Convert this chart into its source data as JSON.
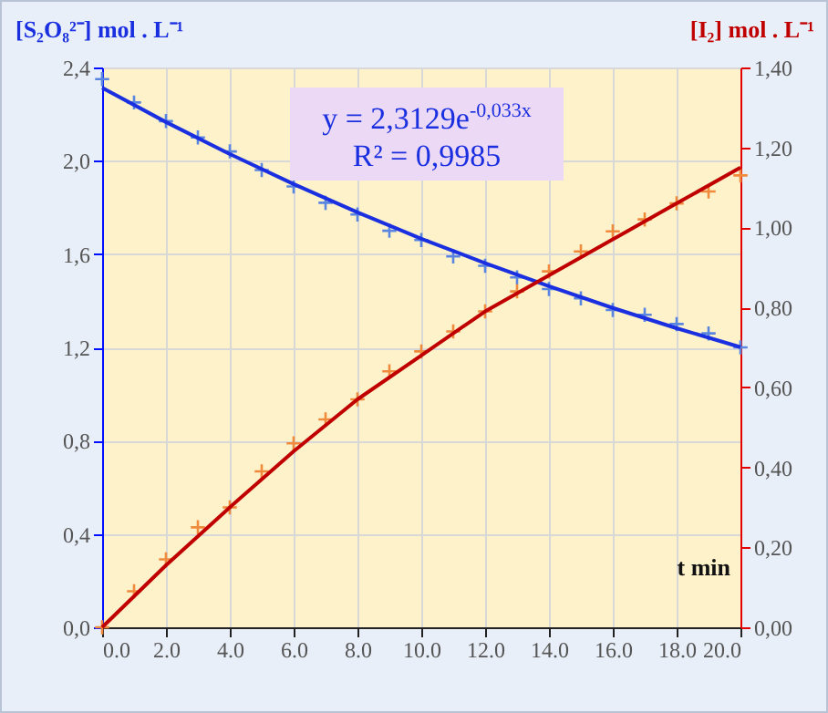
{
  "chart_data": {
    "type": "scatter",
    "xlabel": "t min",
    "ylabel": "[S₂O₈²⁻] mol . L⁻¹",
    "y2label": "[I₂] mol . L⁻¹",
    "x": [
      0,
      1,
      2,
      3,
      4,
      5,
      6,
      7,
      8,
      9,
      10,
      11,
      12,
      13,
      14,
      15,
      16,
      17,
      18,
      19,
      20
    ],
    "xlim": [
      0,
      20
    ],
    "xticks": [
      {
        "value": 0,
        "label": "0.0"
      },
      {
        "value": 2,
        "label": "2.0"
      },
      {
        "value": 4,
        "label": "4.0"
      },
      {
        "value": 6,
        "label": "6.0"
      },
      {
        "value": 8,
        "label": "8.0"
      },
      {
        "value": 10,
        "label": "10.0"
      },
      {
        "value": 12,
        "label": "12.0"
      },
      {
        "value": 14,
        "label": "14.0"
      },
      {
        "value": 16,
        "label": "16.0"
      },
      {
        "value": 18,
        "label": "18.0"
      },
      {
        "value": 20,
        "label": "20.0"
      }
    ],
    "ylim": [
      0,
      2.4
    ],
    "yticks": [
      {
        "value": 0,
        "label": "0,0"
      },
      {
        "value": 0.4,
        "label": "0,4"
      },
      {
        "value": 0.8,
        "label": "0,8"
      },
      {
        "value": 1.2,
        "label": "1,2"
      },
      {
        "value": 1.6,
        "label": "1,6"
      },
      {
        "value": 2,
        "label": "2,0"
      },
      {
        "value": 2.4,
        "label": "2,4"
      }
    ],
    "y2lim": [
      0,
      1.4
    ],
    "y2ticks": [
      {
        "value": 0,
        "label": "0,00"
      },
      {
        "value": 0.2,
        "label": "0,20"
      },
      {
        "value": 0.4,
        "label": "0,40"
      },
      {
        "value": 0.6,
        "label": "0,60"
      },
      {
        "value": 0.8,
        "label": "0,80"
      },
      {
        "value": 1,
        "label": "1,00"
      },
      {
        "value": 1.2,
        "label": "1,20"
      },
      {
        "value": 1.4,
        "label": "1,40"
      }
    ],
    "grid": true,
    "annotations": [
      "y = 2,3129e$^{-0,033x}$",
      "R² = 0,9985"
    ],
    "series": [
      {
        "type": "scatter",
        "marker": "cross",
        "color": "#5b86e0",
        "values": [
          2.35,
          2.25,
          2.17,
          2.1,
          2.04,
          1.96,
          1.89,
          1.82,
          1.77,
          1.7,
          1.66,
          1.59,
          1.55,
          1.5,
          1.45,
          1.41,
          1.36,
          1.34,
          1.3,
          1.26,
          1.2
        ]
      },
      {
        "type": "line",
        "color": "#1a2fe0",
        "x": [
          0,
          2,
          4,
          6,
          8,
          10,
          12,
          14,
          16,
          18,
          20
        ],
        "values": [
          2.313,
          2.166,
          2.029,
          1.9,
          1.779,
          1.666,
          1.561,
          1.462,
          1.369,
          1.282,
          1.201
        ]
      },
      {
        "type": "scatter",
        "marker": "cross",
        "axis": "y2",
        "color": "#f08a3c",
        "values": [
          0,
          0.09,
          0.17,
          0.25,
          0.3,
          0.39,
          0.46,
          0.52,
          0.57,
          0.64,
          0.69,
          0.74,
          0.79,
          0.84,
          0.89,
          0.94,
          0.99,
          1.02,
          1.06,
          1.09,
          1.13
        ]
      },
      {
        "type": "line",
        "axis": "y2",
        "color": "#c00000",
        "x": [
          0,
          2,
          4,
          6,
          8,
          10,
          12,
          14,
          16,
          18,
          20
        ],
        "values": [
          0,
          0.155,
          0.3,
          0.44,
          0.57,
          0.68,
          0.79,
          0.88,
          0.97,
          1.06,
          1.15
        ]
      }
    ]
  }
}
